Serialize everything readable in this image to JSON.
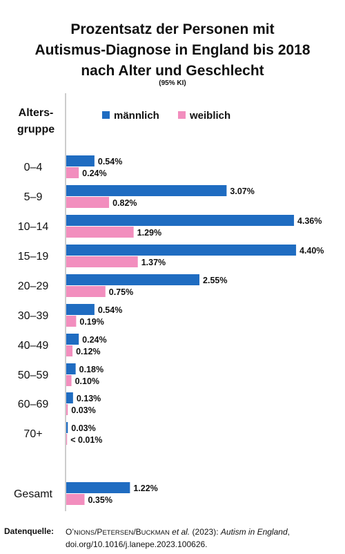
{
  "chart_data": {
    "type": "bar",
    "orientation": "horizontal",
    "title": "Prozentsatz der Personen mit Autismus-Diagnose in England bis 2018 nach Alter und Geschlecht",
    "title_lines": [
      "Prozentsatz der Personen mit",
      "Autismus-Diagnose in England bis 2018",
      "nach Alter und Geschlecht"
    ],
    "subtitle": "(95% KI)",
    "category_axis_label_lines": [
      "Alters-",
      "gruppe"
    ],
    "categories": [
      "0–4",
      "5–9",
      "10–14",
      "15–19",
      "20–29",
      "30–39",
      "40–49",
      "50–59",
      "60–69",
      "70+",
      "Gesamt"
    ],
    "series": [
      {
        "name": "männlich",
        "color": "#1f6cc1",
        "values": [
          0.54,
          3.07,
          4.36,
          4.4,
          2.55,
          0.54,
          0.24,
          0.18,
          0.13,
          0.03,
          1.22
        ],
        "labels": [
          "0.54%",
          "3.07%",
          "4.36%",
          "4.40%",
          "2.55%",
          "0.54%",
          "0.24%",
          "0.18%",
          "0.13%",
          "0.03%",
          "1.22%"
        ]
      },
      {
        "name": "weiblich",
        "color": "#f28ebe",
        "values": [
          0.24,
          0.82,
          1.29,
          1.37,
          0.75,
          0.19,
          0.12,
          0.1,
          0.03,
          0.005,
          0.35
        ],
        "labels": [
          "0.24%",
          "0.82%",
          "1.29%",
          "1.37%",
          "0.75%",
          "0.19%",
          "0.12%",
          "0.10%",
          "0.03%",
          "< 0.01%",
          "0.35%"
        ]
      }
    ],
    "legend_position": "top",
    "grid": false,
    "xlim": [
      0,
      4.4
    ]
  },
  "source": {
    "label": "Datenquelle:",
    "authors_first": "O’",
    "authors_sc1": "NIONS",
    "authors_sep1": "/P",
    "authors_sc2": "ETERSEN",
    "authors_sep2": "/B",
    "authors_sc3": "UCKMAN",
    "etal": " et al.",
    "year": " (2023): ",
    "work": "Autism in England",
    "comma": ",",
    "doi": "doi.org/10.1016/j.lanepe.2023.100626."
  }
}
